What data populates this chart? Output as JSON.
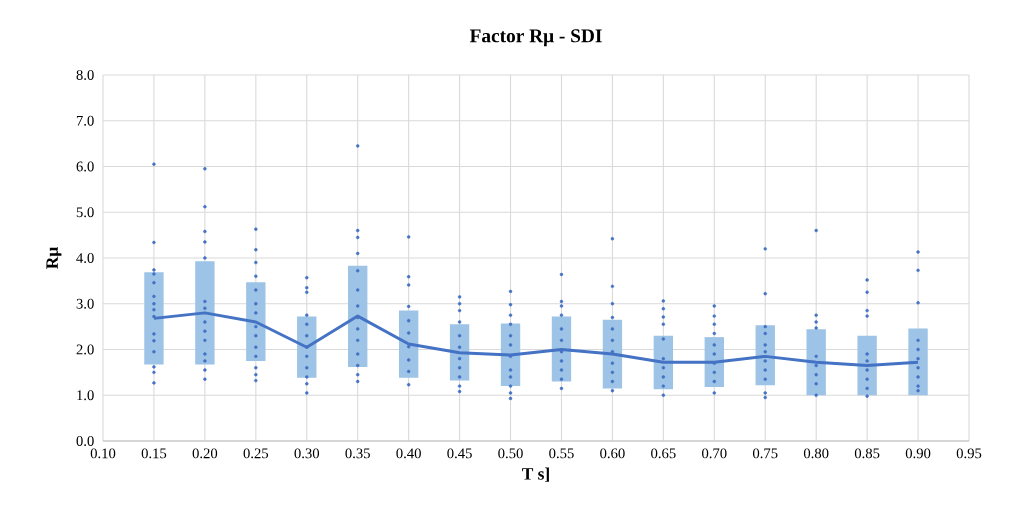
{
  "chart_data": {
    "type": "bar",
    "title": "Factor Rμ - SDI",
    "xlabel": "T s]",
    "ylabel": "Rμ",
    "xlim": [
      0.1,
      0.95
    ],
    "xticks": [
      {
        "value": 0.1,
        "label": "0.10"
      },
      {
        "value": 0.15,
        "label": "0.15"
      },
      {
        "value": 0.2,
        "label": "0.20"
      },
      {
        "value": 0.25,
        "label": "0.25"
      },
      {
        "value": 0.3,
        "label": "0.30"
      },
      {
        "value": 0.35,
        "label": "0.35"
      },
      {
        "value": 0.4,
        "label": "0.40"
      },
      {
        "value": 0.45,
        "label": "0.45"
      },
      {
        "value": 0.5,
        "label": "0.50"
      },
      {
        "value": 0.55,
        "label": "0.55"
      },
      {
        "value": 0.6,
        "label": "0.60"
      },
      {
        "value": 0.65,
        "label": "0.65"
      },
      {
        "value": 0.7,
        "label": "0.70"
      },
      {
        "value": 0.75,
        "label": "0.75"
      },
      {
        "value": 0.8,
        "label": "0.80"
      },
      {
        "value": 0.85,
        "label": "0.85"
      },
      {
        "value": 0.9,
        "label": "0.90"
      },
      {
        "value": 0.95,
        "label": "0.95"
      }
    ],
    "ylim": [
      0,
      8
    ],
    "yticks": [
      {
        "value": 0,
        "label": "0.0"
      },
      {
        "value": 1,
        "label": "1.0"
      },
      {
        "value": 2,
        "label": "2.0"
      },
      {
        "value": 3,
        "label": "3.0"
      },
      {
        "value": 4,
        "label": "4.0"
      },
      {
        "value": 5,
        "label": "5.0"
      },
      {
        "value": 6,
        "label": "6.0"
      },
      {
        "value": 7,
        "label": "7.0"
      },
      {
        "value": 8,
        "label": "8.0"
      }
    ],
    "grid": true,
    "x": [
      0.15,
      0.2,
      0.25,
      0.3,
      0.35,
      0.4,
      0.45,
      0.5,
      0.55,
      0.6,
      0.65,
      0.7,
      0.75,
      0.8,
      0.85,
      0.9
    ],
    "series": [
      {
        "color": "#9dc3e6",
        "base": [
          1.67,
          1.67,
          1.75,
          1.38,
          1.62,
          1.38,
          1.32,
          1.2,
          1.3,
          1.15,
          1.13,
          1.18,
          1.22,
          1.0,
          1.0,
          1.0
        ],
        "values": [
          2.02,
          2.26,
          1.72,
          1.34,
          2.21,
          1.47,
          1.23,
          1.37,
          1.42,
          1.5,
          1.17,
          1.09,
          1.31,
          1.44,
          1.3,
          1.46
        ]
      },
      {
        "type": "scatter",
        "color": "#4472c4",
        "marker": "circle",
        "x": [
          0.15,
          0.15,
          0.15,
          0.15,
          0.15,
          0.15,
          0.15,
          0.15,
          0.15,
          0.15,
          0.15,
          0.15,
          0.15,
          0.15,
          0.15,
          0.2,
          0.2,
          0.2,
          0.2,
          0.2,
          0.2,
          0.2,
          0.2,
          0.2,
          0.2,
          0.2,
          0.2,
          0.2,
          0.2,
          0.25,
          0.25,
          0.25,
          0.25,
          0.25,
          0.25,
          0.25,
          0.25,
          0.25,
          0.25,
          0.25,
          0.25,
          0.25,
          0.25,
          0.3,
          0.3,
          0.3,
          0.3,
          0.3,
          0.3,
          0.3,
          0.3,
          0.3,
          0.3,
          0.3,
          0.3,
          0.35,
          0.35,
          0.35,
          0.35,
          0.35,
          0.35,
          0.35,
          0.35,
          0.35,
          0.35,
          0.35,
          0.35,
          0.35,
          0.35,
          0.4,
          0.4,
          0.4,
          0.4,
          0.4,
          0.4,
          0.4,
          0.4,
          0.4,
          0.4,
          0.45,
          0.45,
          0.45,
          0.45,
          0.45,
          0.45,
          0.45,
          0.45,
          0.45,
          0.45,
          0.45,
          0.5,
          0.5,
          0.5,
          0.5,
          0.5,
          0.5,
          0.5,
          0.5,
          0.5,
          0.5,
          0.5,
          0.5,
          0.55,
          0.55,
          0.55,
          0.55,
          0.55,
          0.55,
          0.55,
          0.55,
          0.55,
          0.55,
          0.55,
          0.6,
          0.6,
          0.6,
          0.6,
          0.6,
          0.6,
          0.6,
          0.6,
          0.6,
          0.6,
          0.6,
          0.65,
          0.65,
          0.65,
          0.65,
          0.65,
          0.65,
          0.65,
          0.65,
          0.65,
          0.65,
          0.7,
          0.7,
          0.7,
          0.7,
          0.7,
          0.7,
          0.7,
          0.7,
          0.7,
          0.7,
          0.75,
          0.75,
          0.75,
          0.75,
          0.75,
          0.75,
          0.75,
          0.75,
          0.75,
          0.75,
          0.75,
          0.8,
          0.8,
          0.8,
          0.8,
          0.8,
          0.8,
          0.8,
          0.8,
          0.8,
          0.85,
          0.85,
          0.85,
          0.85,
          0.85,
          0.85,
          0.85,
          0.85,
          0.85,
          0.85,
          0.9,
          0.9,
          0.9,
          0.9,
          0.9,
          0.9,
          0.9,
          0.9,
          0.9,
          0.9
        ],
        "values": [
          6.05,
          4.34,
          3.74,
          3.65,
          3.46,
          3.16,
          3.0,
          2.87,
          2.72,
          2.34,
          2.19,
          1.95,
          1.62,
          1.5,
          1.27,
          5.95,
          5.12,
          4.58,
          4.35,
          4.0,
          3.05,
          2.9,
          2.6,
          2.4,
          2.2,
          1.9,
          1.75,
          1.55,
          1.35,
          4.63,
          4.18,
          3.9,
          3.6,
          3.3,
          3.0,
          2.8,
          2.5,
          2.3,
          2.05,
          1.85,
          1.6,
          1.45,
          1.32,
          3.57,
          3.35,
          3.25,
          2.75,
          2.55,
          2.3,
          2.05,
          1.85,
          1.6,
          1.4,
          1.25,
          1.05,
          6.45,
          4.6,
          4.45,
          4.1,
          3.72,
          3.3,
          2.95,
          2.7,
          2.45,
          2.2,
          1.9,
          1.65,
          1.45,
          1.3,
          4.46,
          3.59,
          3.41,
          2.94,
          2.63,
          2.36,
          2.06,
          1.77,
          1.52,
          1.23,
          3.15,
          3.0,
          2.85,
          2.6,
          2.3,
          2.05,
          1.8,
          1.6,
          1.4,
          1.2,
          1.08,
          3.27,
          2.98,
          2.75,
          2.55,
          2.3,
          2.1,
          1.85,
          1.55,
          1.4,
          1.2,
          1.05,
          0.93,
          3.64,
          3.05,
          2.95,
          2.75,
          2.45,
          2.2,
          1.95,
          1.75,
          1.55,
          1.35,
          1.15,
          4.42,
          3.38,
          3.0,
          2.7,
          2.45,
          2.2,
          1.95,
          1.7,
          1.5,
          1.3,
          1.1,
          3.06,
          2.89,
          2.71,
          2.55,
          2.23,
          1.8,
          1.6,
          1.4,
          1.2,
          1.0,
          2.95,
          2.73,
          2.55,
          2.35,
          2.1,
          1.9,
          1.7,
          1.5,
          1.3,
          1.05,
          4.2,
          3.22,
          2.5,
          2.35,
          2.1,
          1.95,
          1.75,
          1.55,
          1.35,
          1.05,
          0.95,
          4.6,
          2.75,
          2.6,
          2.47,
          1.85,
          1.65,
          1.45,
          1.25,
          1.0,
          3.52,
          3.25,
          2.85,
          2.73,
          1.9,
          1.75,
          1.55,
          1.35,
          1.15,
          0.98,
          4.13,
          3.73,
          3.02,
          2.2,
          2.0,
          1.8,
          1.6,
          1.4,
          1.2,
          1.1
        ]
      },
      {
        "type": "line",
        "color": "#4472c4",
        "values": [
          2.68,
          2.8,
          2.6,
          2.05,
          2.73,
          2.12,
          1.93,
          1.88,
          2.0,
          1.9,
          1.72,
          1.72,
          1.85,
          1.72,
          1.65,
          1.72
        ]
      }
    ]
  }
}
